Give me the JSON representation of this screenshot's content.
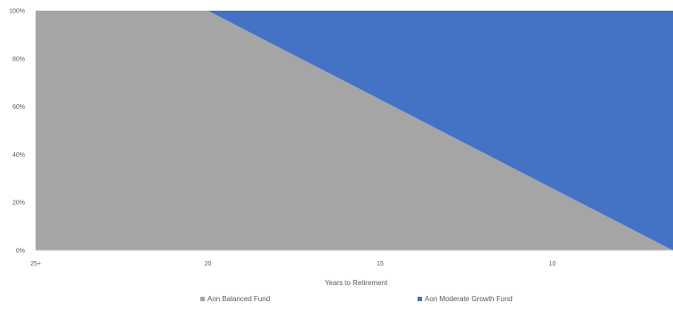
{
  "chart_data": {
    "type": "area",
    "stacked": true,
    "percent_stacked": true,
    "x_categories": [
      "25+",
      "20",
      "15",
      "10"
    ],
    "xlabel": "Years to Retirement",
    "ylim": [
      0,
      100
    ],
    "y_ticks": [
      {
        "value": 0,
        "label": "0%"
      },
      {
        "value": 20,
        "label": "20%"
      },
      {
        "value": 40,
        "label": "40%"
      },
      {
        "value": 60,
        "label": "60%"
      },
      {
        "value": 80,
        "label": "80%"
      },
      {
        "value": 100,
        "label": "100%"
      }
    ],
    "grid": true,
    "legend_position": "bottom",
    "x_range": [
      25,
      6.5
    ],
    "series": [
      {
        "name": "Aon Balanced Fund",
        "color": "#a5a5a5",
        "points": [
          {
            "x": 25,
            "y": 100
          },
          {
            "x": 20,
            "y": 100
          },
          {
            "x": 6.5,
            "y": 0
          }
        ]
      },
      {
        "name": "Aon Moderate Growth Fund",
        "color": "#4472c4",
        "points": [
          {
            "x": 25,
            "y": 0
          },
          {
            "x": 20,
            "y": 0
          },
          {
            "x": 6.5,
            "y": 100
          }
        ]
      }
    ],
    "x_tick_values": [
      25,
      20,
      15,
      10
    ]
  }
}
